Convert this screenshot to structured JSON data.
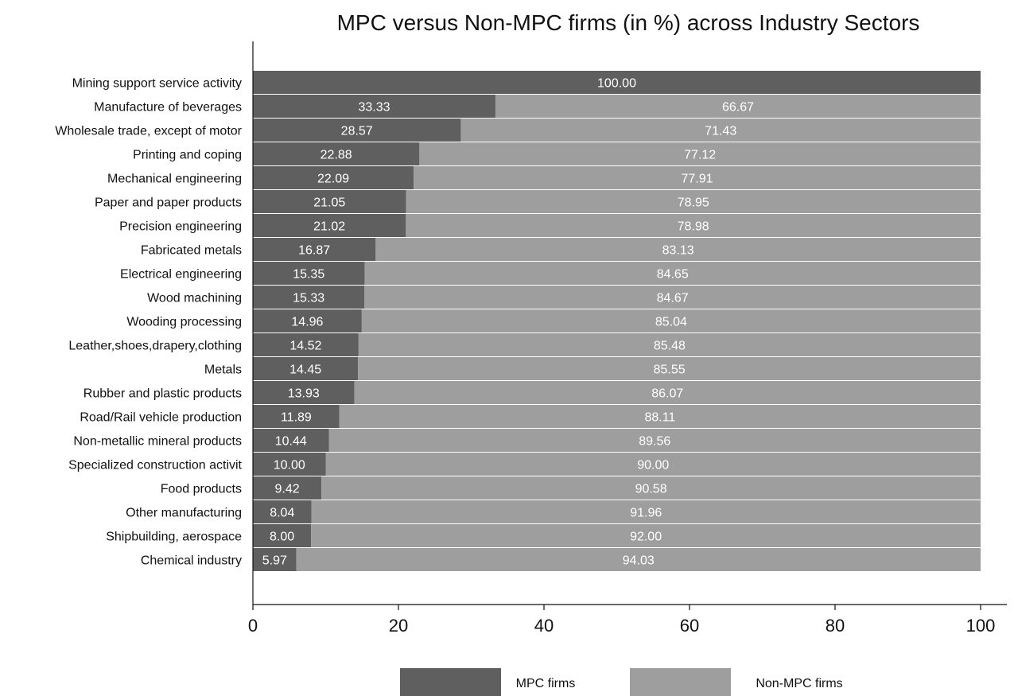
{
  "chart_data": {
    "type": "bar",
    "orientation": "horizontal",
    "stacked": true,
    "title": "MPC versus Non-MPC firms (in %) across Industry Sectors",
    "xlabel": "",
    "ylabel": "",
    "xlim": [
      0,
      100
    ],
    "x_ticks": [
      0,
      20,
      40,
      60,
      80,
      100
    ],
    "grid": false,
    "legend_position": "bottom",
    "categories": [
      "Mining support service activity",
      "Manufacture of beverages",
      "Wholesale trade, except of motor",
      "Printing and coping",
      "Mechanical engineering",
      "Paper and paper products",
      "Precision engineering",
      "Fabricated metals",
      "Electrical engineering",
      "Wood machining",
      "Wooding processing",
      "Leather,shoes,drapery,clothing",
      "Metals",
      "Rubber and plastic products",
      "Road/Rail vehicle production",
      "Non-metallic mineral products",
      "Specialized construction activit",
      "Food products",
      "Other manufacturing",
      "Shipbuilding, aerospace",
      "Chemical industry"
    ],
    "series": [
      {
        "name": "MPC firms",
        "color": "#5f5f5f",
        "values": [
          100.0,
          33.33,
          28.57,
          22.88,
          22.09,
          21.05,
          21.02,
          16.87,
          15.35,
          15.33,
          14.96,
          14.52,
          14.45,
          13.93,
          11.89,
          10.44,
          10.0,
          9.42,
          8.04,
          8.0,
          5.97
        ],
        "labels": [
          "100.00",
          "33.33",
          "28.57",
          "22.88",
          "22.09",
          "21.05",
          "21.02",
          "16.87",
          "15.35",
          "15.33",
          "14.96",
          "14.52",
          "14.45",
          "13.93",
          "11.89",
          "10.44",
          "10.00",
          "9.42",
          "8.04",
          "8.00",
          "5.97"
        ]
      },
      {
        "name": "Non-MPC firms",
        "color": "#9e9e9e",
        "values": [
          0.0,
          66.67,
          71.43,
          77.12,
          77.91,
          78.95,
          78.98,
          83.13,
          84.65,
          84.67,
          85.04,
          85.48,
          85.55,
          86.07,
          88.11,
          89.56,
          90.0,
          90.58,
          91.96,
          92.0,
          94.03
        ],
        "labels": [
          "0.0",
          "66.67",
          "71.43",
          "77.12",
          "77.91",
          "78.95",
          "78.98",
          "83.13",
          "84.65",
          "84.67",
          "85.04",
          "85.48",
          "85.55",
          "86.07",
          "88.11",
          "89.56",
          "90.00",
          "90.58",
          "91.96",
          "92.00",
          "94.03"
        ]
      }
    ]
  }
}
